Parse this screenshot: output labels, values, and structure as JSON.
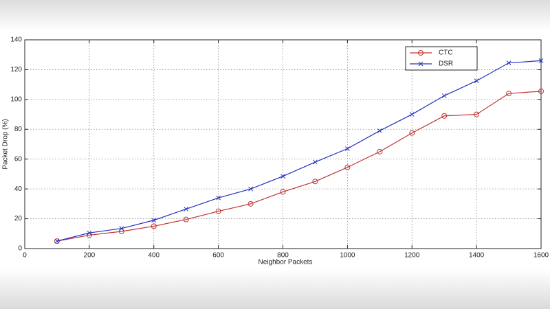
{
  "chart_data": {
    "type": "line",
    "xlabel": "Neighbor Packets",
    "ylabel": "Packet Drop (%)",
    "x": [
      100,
      200,
      300,
      400,
      500,
      600,
      700,
      800,
      900,
      1000,
      1100,
      1200,
      1300,
      1400,
      1500,
      1600
    ],
    "series": [
      {
        "name": "CTC",
        "color": "#c03030",
        "marker": "o",
        "values": [
          5,
          9,
          11.5,
          15,
          19.5,
          25,
          30,
          38,
          45,
          54.5,
          65,
          77.5,
          89,
          90,
          104,
          105.5
        ]
      },
      {
        "name": "DSR",
        "color": "#2030c0",
        "marker": "x",
        "values": [
          5,
          10.5,
          13.5,
          19,
          26.5,
          34,
          40,
          48.5,
          58,
          67,
          79,
          90,
          102.5,
          112.5,
          124.5,
          126
        ]
      }
    ],
    "xlim": [
      0,
      1600
    ],
    "xticks": [
      0,
      200,
      400,
      600,
      800,
      1000,
      1200,
      1400,
      1600
    ],
    "ylim": [
      0,
      140
    ],
    "yticks": [
      0,
      20,
      40,
      60,
      80,
      100,
      120,
      140
    ],
    "grid": true,
    "legend": "northeast"
  }
}
